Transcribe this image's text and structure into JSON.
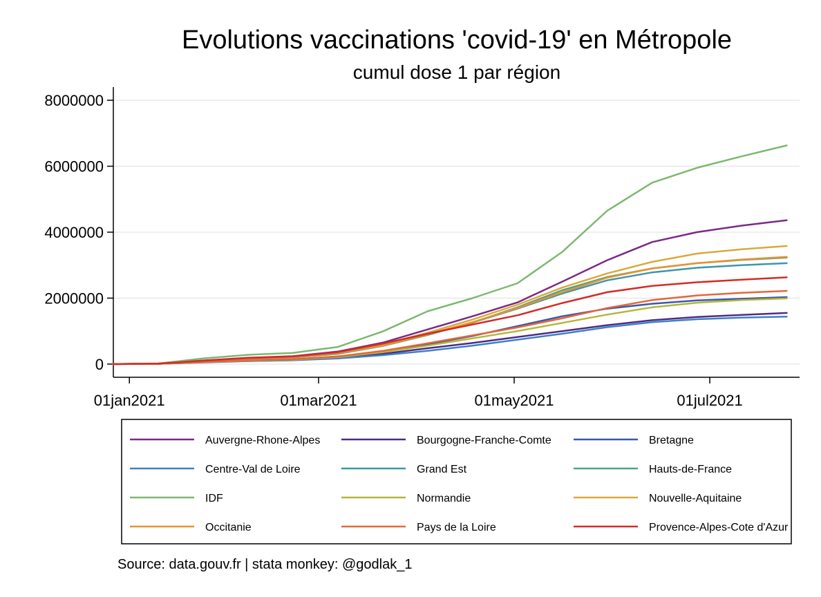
{
  "chart_data": {
    "type": "line",
    "title": "Evolutions vaccinations 'covid-19' en Métropole",
    "subtitle": "cumul dose 1 par région",
    "note": "Source: data.gouv.fr | stata monkey: @godlak_1",
    "xlabel": "",
    "ylabel": "",
    "xlim": [
      "2020-12-27",
      "2021-07-29"
    ],
    "ylim": [
      -400000,
      8400000
    ],
    "x_ticks": [
      {
        "date": "2021-01-01",
        "label": "01jan2021"
      },
      {
        "date": "2021-03-01",
        "label": "01mar2021"
      },
      {
        "date": "2021-05-01",
        "label": "01may2021"
      },
      {
        "date": "2021-07-01",
        "label": "01jul2021"
      }
    ],
    "y_ticks": [
      {
        "value": 0,
        "label": "0"
      },
      {
        "value": 2000000,
        "label": "2000000"
      },
      {
        "value": 4000000,
        "label": "4000000"
      },
      {
        "value": 6000000,
        "label": "6000000"
      },
      {
        "value": 8000000,
        "label": "8000000"
      }
    ],
    "grid": true,
    "legend_position": "bottom",
    "x": [
      "2020-12-27",
      "2021-01-10",
      "2021-01-24",
      "2021-02-07",
      "2021-02-21",
      "2021-03-07",
      "2021-03-21",
      "2021-04-04",
      "2021-04-18",
      "2021-05-02",
      "2021-05-16",
      "2021-05-30",
      "2021-06-13",
      "2021-06-27",
      "2021-07-11",
      "2021-07-25"
    ],
    "series": [
      {
        "name": "Auvergne-Rhone-Alpes",
        "color": "#7b2a84",
        "values": [
          0,
          15000,
          110000,
          190000,
          240000,
          380000,
          650000,
          1050000,
          1450000,
          1870000,
          2500000,
          3150000,
          3700000,
          4000000,
          4200000,
          4360000
        ]
      },
      {
        "name": "Bourgogne-Franche-Comte",
        "color": "#4b2c84",
        "values": [
          0,
          8000,
          55000,
          95000,
          120000,
          190000,
          310000,
          480000,
          640000,
          820000,
          1000000,
          1180000,
          1330000,
          1430000,
          1490000,
          1550000
        ]
      },
      {
        "name": "Bretagne",
        "color": "#3a58a8",
        "values": [
          0,
          9000,
          65000,
          115000,
          145000,
          230000,
          380000,
          600000,
          850000,
          1150000,
          1450000,
          1680000,
          1830000,
          1930000,
          1980000,
          2030000
        ]
      },
      {
        "name": "Centre-Val de Loire",
        "color": "#3f7fc6",
        "values": [
          0,
          8000,
          50000,
          90000,
          115000,
          170000,
          270000,
          400000,
          560000,
          740000,
          920000,
          1120000,
          1270000,
          1360000,
          1410000,
          1440000
        ]
      },
      {
        "name": "Grand Est",
        "color": "#3d97a9",
        "values": [
          0,
          14000,
          100000,
          170000,
          210000,
          330000,
          570000,
          900000,
          1260000,
          1680000,
          2140000,
          2540000,
          2780000,
          2920000,
          3000000,
          3060000
        ]
      },
      {
        "name": "Hauts-de-France",
        "color": "#4aa38a",
        "values": [
          0,
          13000,
          95000,
          160000,
          200000,
          310000,
          550000,
          880000,
          1260000,
          1720000,
          2240000,
          2640000,
          2900000,
          3060000,
          3160000,
          3230000
        ]
      },
      {
        "name": "IDF",
        "color": "#7cb86e",
        "values": [
          0,
          20000,
          170000,
          280000,
          340000,
          520000,
          990000,
          1600000,
          2000000,
          2450000,
          3400000,
          4650000,
          5500000,
          5950000,
          6300000,
          6630000
        ]
      },
      {
        "name": "Normandie",
        "color": "#b3b63a",
        "values": [
          0,
          9000,
          60000,
          105000,
          135000,
          210000,
          360000,
          560000,
          780000,
          1000000,
          1250000,
          1500000,
          1720000,
          1860000,
          1940000,
          1990000
        ]
      },
      {
        "name": "Nouvelle-Aquitaine",
        "color": "#d9a93c",
        "values": [
          0,
          13000,
          100000,
          175000,
          225000,
          350000,
          600000,
          950000,
          1350000,
          1800000,
          2320000,
          2750000,
          3100000,
          3350000,
          3480000,
          3580000
        ]
      },
      {
        "name": "Occitanie",
        "color": "#e8922e",
        "values": [
          0,
          12000,
          95000,
          165000,
          210000,
          330000,
          560000,
          900000,
          1270000,
          1700000,
          2180000,
          2620000,
          2900000,
          3060000,
          3170000,
          3250000
        ]
      },
      {
        "name": "Pays de la Loire",
        "color": "#e4663a",
        "values": [
          0,
          9000,
          65000,
          115000,
          145000,
          230000,
          400000,
          630000,
          870000,
          1110000,
          1390000,
          1700000,
          1940000,
          2080000,
          2160000,
          2220000
        ]
      },
      {
        "name": "Provence-Alpes-Cote d'Azur",
        "color": "#d42b27",
        "values": [
          0,
          13000,
          105000,
          185000,
          230000,
          360000,
          620000,
          920000,
          1200000,
          1480000,
          1850000,
          2180000,
          2370000,
          2480000,
          2560000,
          2630000
        ]
      }
    ]
  }
}
